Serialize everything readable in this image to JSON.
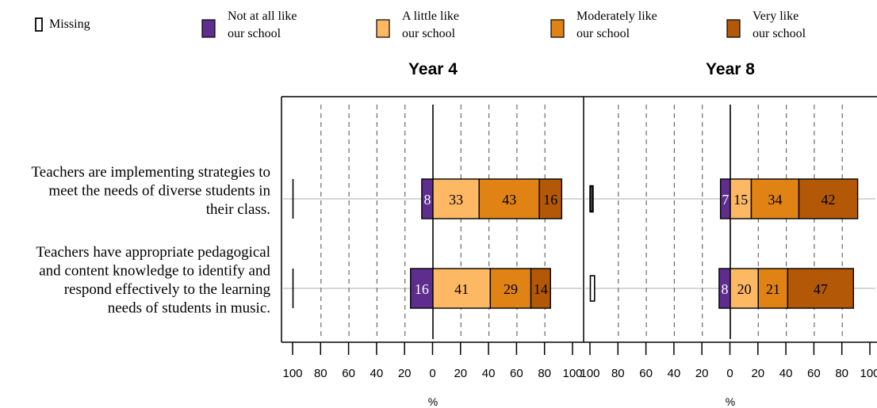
{
  "legend": {
    "items": [
      {
        "lines": [
          "Missing"
        ],
        "color": "#ffffff"
      },
      {
        "lines": [
          "Not at all like",
          "our school"
        ],
        "color": "#5e2d8e"
      },
      {
        "lines": [
          "A little like",
          "our school"
        ],
        "color": "#fdb863"
      },
      {
        "lines": [
          "Moderately like",
          "our school"
        ],
        "color": "#e08214"
      },
      {
        "lines": [
          "Very like",
          "our school"
        ],
        "color": "#b35806"
      }
    ]
  },
  "chart_data": {
    "type": "bar",
    "orientation": "horizontal-diverging",
    "categories": [
      [
        "Teachers are implementing strategies to",
        "meet the needs of diverse students in",
        "their class."
      ],
      [
        "Teachers have appropriate pedagogical",
        "and content knowledge to identify and",
        "respond effectively to the learning",
        "needs of students in music."
      ]
    ],
    "xlabel": "%",
    "xlim": [
      -100,
      100
    ],
    "ticks": [
      100,
      80,
      60,
      40,
      20,
      0,
      20,
      40,
      60,
      80,
      100
    ],
    "panels": [
      {
        "title": "Year 4",
        "missing": [
          0,
          0
        ],
        "series": [
          {
            "name": "Not at all like our school",
            "values": [
              8,
              16
            ]
          },
          {
            "name": "A little like our school",
            "values": [
              33,
              41
            ]
          },
          {
            "name": "Moderately like our school",
            "values": [
              43,
              29
            ]
          },
          {
            "name": "Very like our school",
            "values": [
              16,
              14
            ]
          }
        ]
      },
      {
        "title": "Year 8",
        "missing": [
          1,
          3
        ],
        "series": [
          {
            "name": "Not at all like our school",
            "values": [
              7,
              8
            ]
          },
          {
            "name": "A little like our school",
            "values": [
              15,
              20
            ]
          },
          {
            "name": "Moderately like our school",
            "values": [
              34,
              21
            ]
          },
          {
            "name": "Very like our school",
            "values": [
              42,
              47
            ]
          }
        ]
      }
    ]
  }
}
